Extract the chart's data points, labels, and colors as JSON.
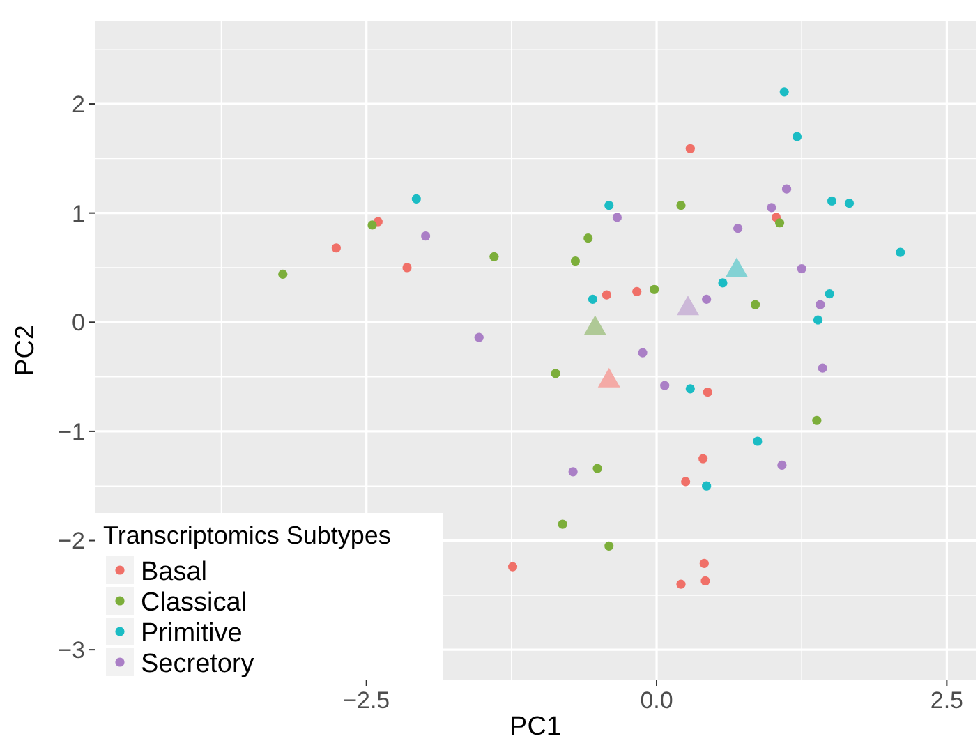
{
  "chart_data": {
    "type": "scatter",
    "xlabel": "PC1",
    "ylabel": "PC2",
    "legend_title": "Transcriptomics Subtypes",
    "legend": "bottom left",
    "grid": true,
    "marker": "circle",
    "xlim": [
      -4.84,
      2.75
    ],
    "ylim": [
      -3.28,
      2.76
    ],
    "xticks": [
      {
        "value": -3.75,
        "label": null
      },
      -2.5,
      {
        "value": -1.25,
        "label": null
      },
      {
        "value": 0,
        "label": "0.0"
      },
      {
        "value": 1.25,
        "label": null
      },
      2.5
    ],
    "yticks": [
      -3,
      {
        "value": -2.5,
        "label": null
      },
      -2,
      {
        "value": -1.5,
        "label": null
      },
      -1,
      {
        "value": -0.5,
        "label": null
      },
      0,
      {
        "value": 0.5,
        "label": null
      },
      1,
      {
        "value": 1.5,
        "label": null
      },
      2,
      {
        "value": 2.5,
        "label": null
      }
    ],
    "series": [
      {
        "name": "Basal",
        "color": "#f07068",
        "x": [
          -2.76,
          -2.4,
          -2.15,
          -1.24,
          0.29,
          1.03,
          -0.43,
          -0.17,
          0.44,
          0.4,
          0.25,
          0.41,
          0.42,
          0.21
        ],
        "values": [
          0.68,
          0.92,
          0.5,
          -2.24,
          1.59,
          0.96,
          0.25,
          0.28,
          -0.64,
          -1.25,
          -1.46,
          -2.21,
          -2.37,
          -2.4
        ]
      },
      {
        "name": "Classical",
        "color": "#7cae3a",
        "x": [
          -3.22,
          -2.45,
          -1.4,
          -0.59,
          -0.7,
          0.21,
          1.06,
          -0.02,
          0.85,
          -0.87,
          1.38,
          -0.51,
          -0.81,
          -0.41
        ],
        "values": [
          0.44,
          0.89,
          0.6,
          0.77,
          0.56,
          1.07,
          0.91,
          0.3,
          0.16,
          -0.47,
          -0.9,
          -1.34,
          -1.85,
          -2.05
        ]
      },
      {
        "name": "Primitive",
        "color": "#1bbcc4",
        "x": [
          -2.07,
          1.1,
          1.21,
          -0.41,
          1.51,
          1.66,
          2.1,
          0.57,
          -0.55,
          1.49,
          1.39,
          0.29,
          0.87,
          0.43
        ],
        "values": [
          1.13,
          2.11,
          1.7,
          1.07,
          1.11,
          1.09,
          0.64,
          0.36,
          0.21,
          0.26,
          0.02,
          -0.61,
          -1.09,
          -1.5
        ]
      },
      {
        "name": "Secretory",
        "color": "#aa7fc6",
        "x": [
          -1.99,
          -1.53,
          -0.34,
          1.12,
          0.99,
          0.7,
          1.25,
          0.43,
          1.41,
          -0.12,
          1.43,
          0.07,
          1.08,
          -0.72
        ],
        "values": [
          0.79,
          -0.14,
          0.96,
          1.22,
          1.05,
          0.86,
          0.49,
          0.21,
          0.16,
          -0.28,
          -0.42,
          -0.58,
          -1.31,
          -1.37
        ]
      },
      {
        "color": "#f4aaa6",
        "marker": "triangle",
        "x": [
          -0.41
        ],
        "values": [
          -0.52
        ]
      },
      {
        "color": "#afc996",
        "marker": "triangle",
        "x": [
          -0.53
        ],
        "values": [
          -0.04
        ]
      },
      {
        "color": "#83d2d4",
        "marker": "triangle",
        "x": [
          0.69
        ],
        "values": [
          0.49
        ]
      },
      {
        "color": "#ccb8d8",
        "marker": "triangle",
        "x": [
          0.27
        ],
        "values": [
          0.14
        ]
      }
    ]
  }
}
